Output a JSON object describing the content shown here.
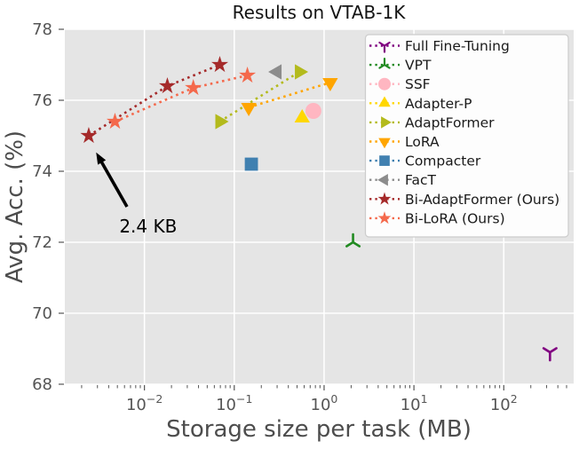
{
  "chart_data": {
    "type": "scatter",
    "title": "Results on VTAB-1K",
    "xlabel": "Storage size per task (MB)",
    "ylabel": "Avg. Acc. (%)",
    "x_scale": "log",
    "xlim": [
      0.0013,
      600
    ],
    "ylim": [
      68,
      78
    ],
    "x_tick_exponents": [
      -2,
      -1,
      0,
      1,
      2
    ],
    "x_tick_base": "10",
    "y_ticks": [
      68,
      70,
      72,
      74,
      76,
      78
    ],
    "grid": true,
    "legend_position": "upper right",
    "series": [
      {
        "name": "Full Fine-Tuning",
        "color": "#800080",
        "marker": "tri_down",
        "line": "none",
        "points": [
          [
            327,
            68.9
          ]
        ]
      },
      {
        "name": "VPT",
        "color": "#228B22",
        "marker": "tri_up",
        "line": "none",
        "points": [
          [
            2.1,
            72.0
          ]
        ]
      },
      {
        "name": "SSF",
        "color": "#FFB6C1",
        "marker": "circle",
        "line": "none",
        "points": [
          [
            0.76,
            75.7
          ]
        ]
      },
      {
        "name": "Adapter-P",
        "color": "#FFD700",
        "marker": "triangle_up",
        "line": "none",
        "points": [
          [
            0.57,
            75.5
          ]
        ]
      },
      {
        "name": "AdaptFormer",
        "color": "#B3BA1C",
        "marker": "triangle_right",
        "line": "dotted",
        "points": [
          [
            0.069,
            75.4
          ],
          [
            0.53,
            76.8
          ]
        ]
      },
      {
        "name": "LoRA",
        "color": "#FFA500",
        "marker": "triangle_down",
        "line": "dotted",
        "points": [
          [
            0.145,
            75.8
          ],
          [
            1.17,
            76.5
          ]
        ]
      },
      {
        "name": "Compacter",
        "color": "#4080B0",
        "marker": "square",
        "line": "none",
        "points": [
          [
            0.155,
            74.2
          ]
        ]
      },
      {
        "name": "FacT",
        "color": "#8C8C8C",
        "marker": "triangle_left",
        "line": "none",
        "points": [
          [
            0.3,
            76.8
          ]
        ]
      },
      {
        "name": "Bi-AdaptFormer (Ours)",
        "color": "#A52A2A",
        "marker": "star",
        "line": "dotted",
        "points": [
          [
            0.0024,
            75.0
          ],
          [
            0.018,
            76.4
          ],
          [
            0.069,
            77.0
          ]
        ]
      },
      {
        "name": "Bi-LoRA (Ours)",
        "color": "#F4694C",
        "marker": "star",
        "line": "dotted",
        "points": [
          [
            0.0047,
            75.4
          ],
          [
            0.035,
            76.35
          ],
          [
            0.14,
            76.7
          ]
        ]
      }
    ],
    "annotation": {
      "text": "2.4 KB",
      "text_at": [
        0.011,
        72.45
      ],
      "arrow_from": [
        0.0064,
        73.0
      ],
      "arrow_to": [
        0.0029,
        74.53
      ]
    },
    "colors": {
      "plot_background": "#E5E5E5",
      "grid": "#FFFFFF",
      "tick_text": "#555555",
      "axis_label_text": "#4d4d4d",
      "title_text": "#141414",
      "legend_text": "#1a1a1a",
      "legend_border": "#cccccc",
      "legend_background": "#fdfdfd",
      "annotation_arrow": "#000000"
    }
  }
}
